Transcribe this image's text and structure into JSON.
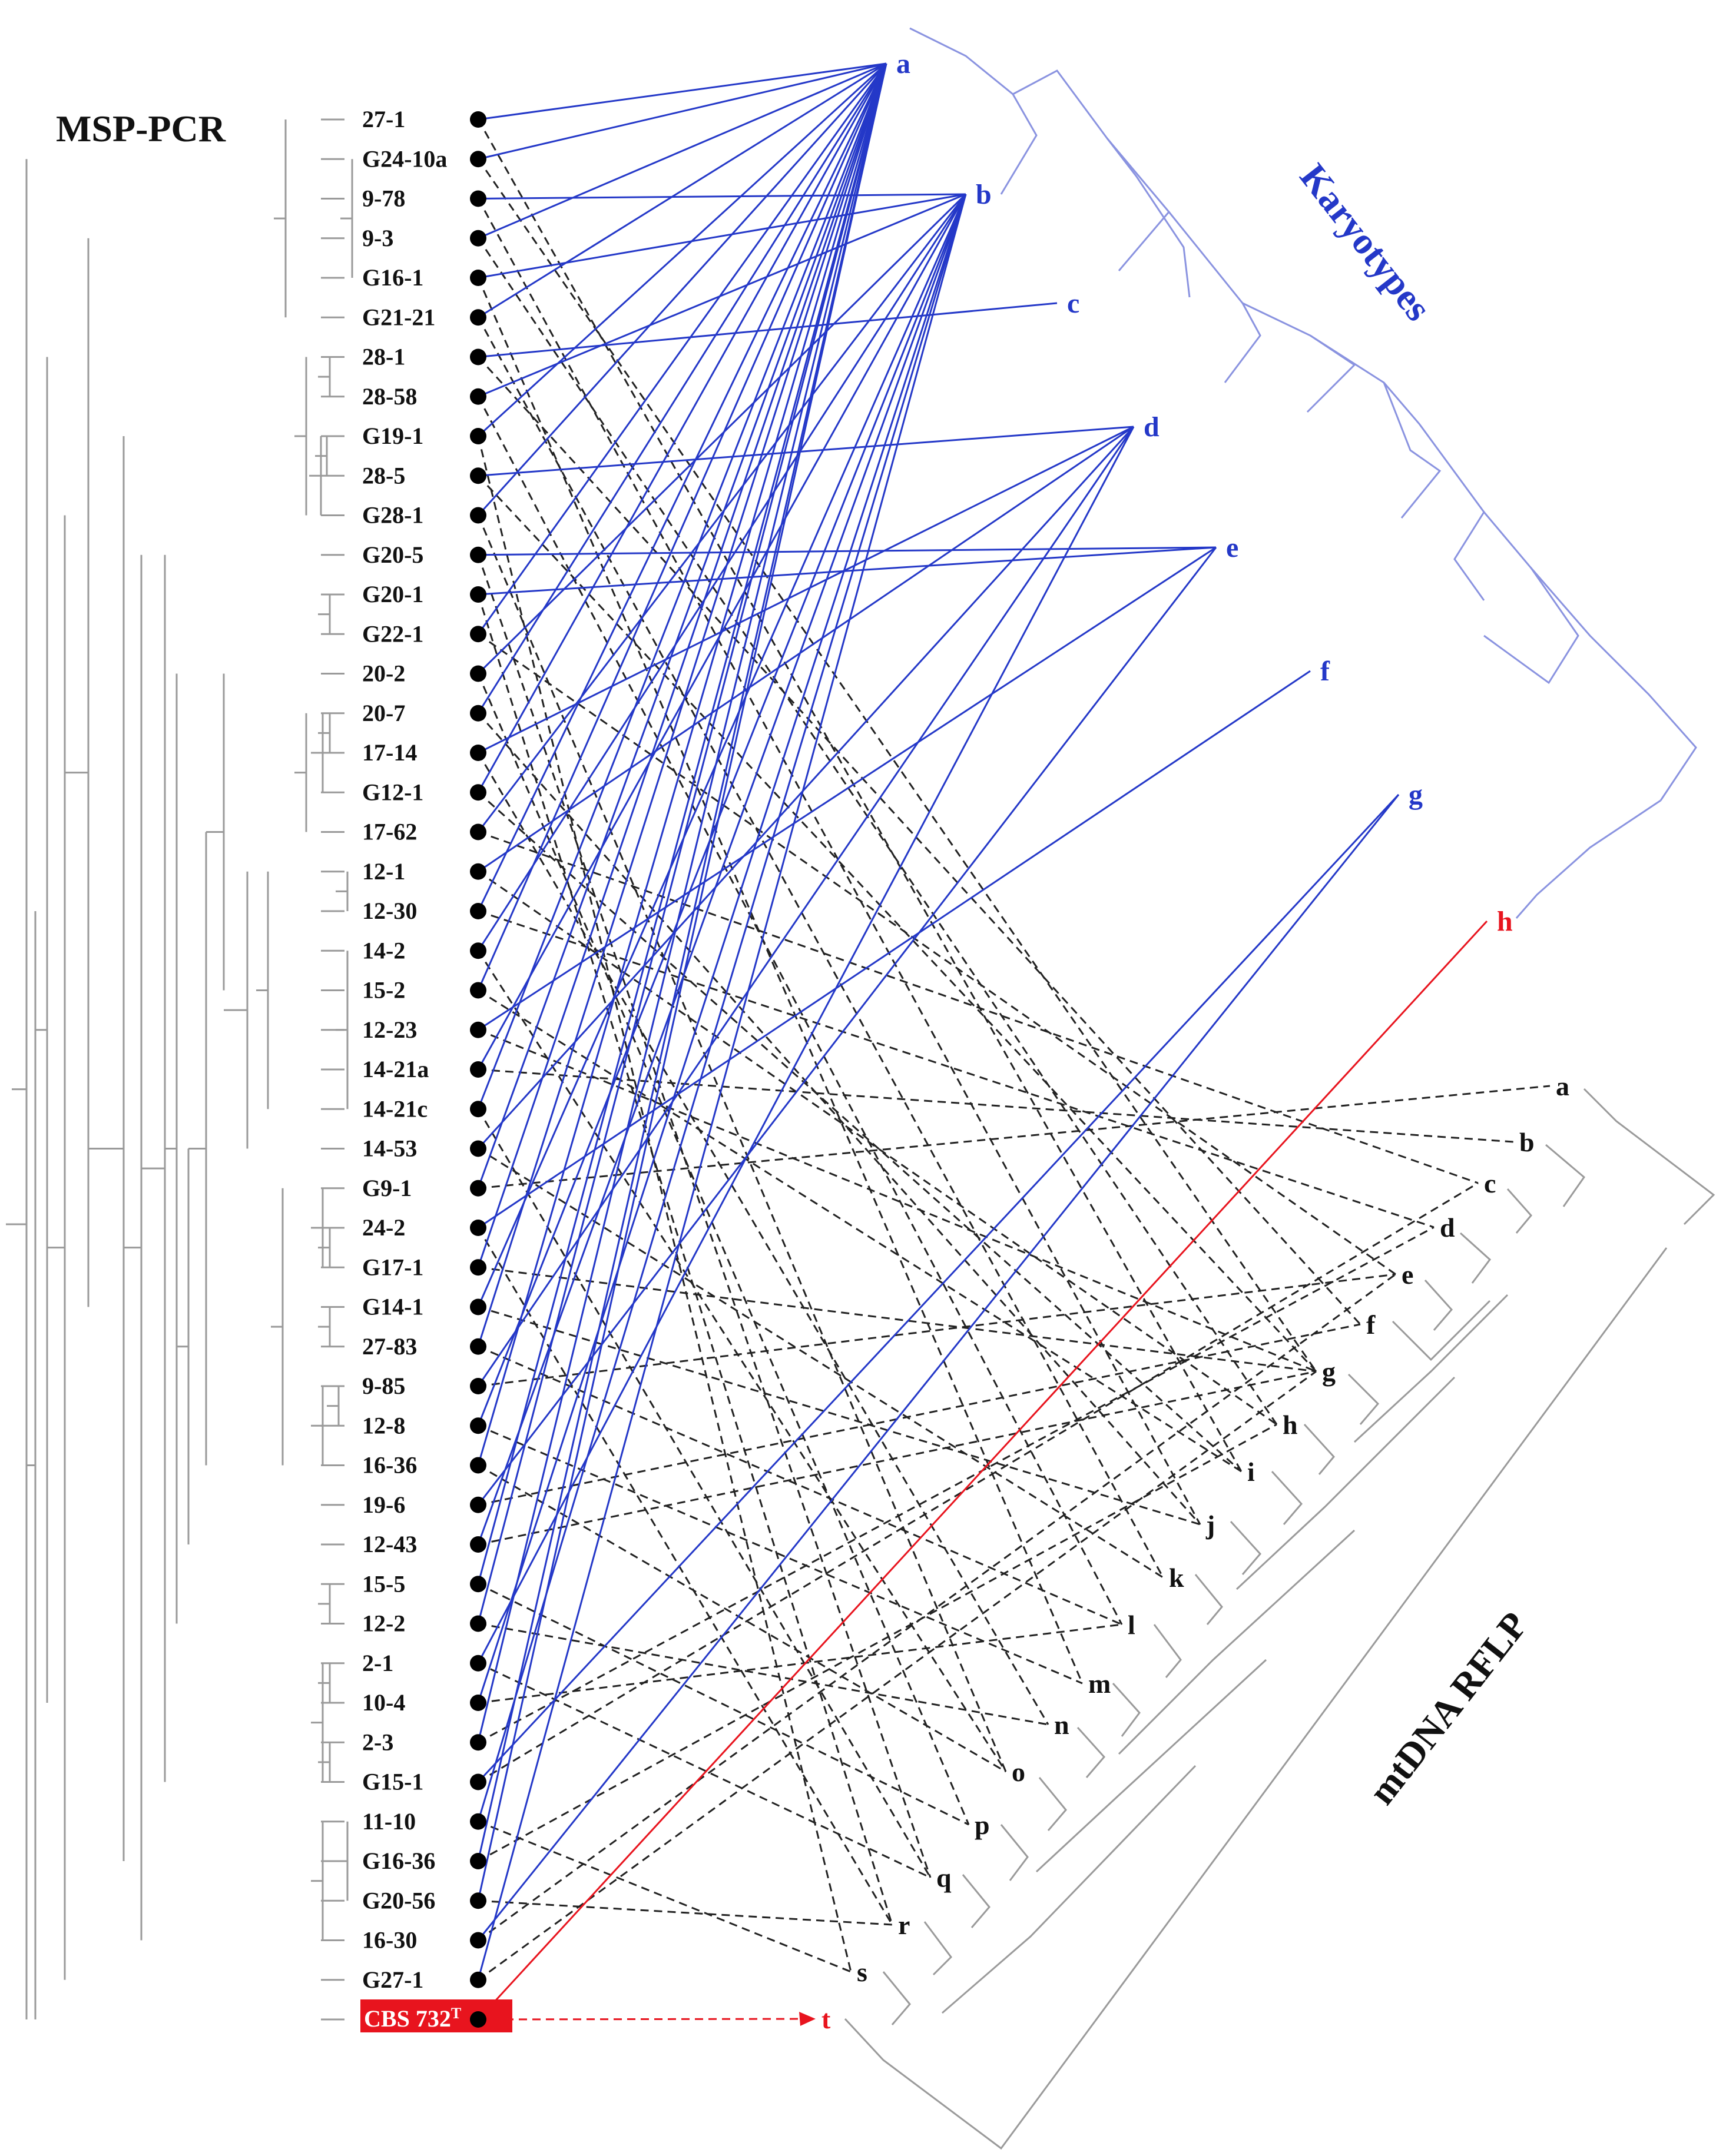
{
  "title": "MSP-PCR",
  "karyotypes_title": "Karyotypes",
  "mtdna_title": "mtDNA RFLP",
  "colors": {
    "karyotype": "#2438c8",
    "karyotype_tree": "#8a93e0",
    "mtdna_tree": "#9a9a9a",
    "msp_tree": "#9a9a9a",
    "highlight": "#e8141e",
    "dashed": "#222222",
    "text": "#111111"
  },
  "strains": [
    "27-1",
    "G24-10a",
    "9-78",
    "9-3",
    "G16-1",
    "G21-21",
    "28-1",
    "28-58",
    "G19-1",
    "28-5",
    "G28-1",
    "G20-5",
    "G20-1",
    "G22-1",
    "20-2",
    "20-7",
    "17-14",
    "G12-1",
    "17-62",
    "12-1",
    "12-30",
    "14-2",
    "15-2",
    "12-23",
    "14-21a",
    "14-21c",
    "14-53",
    "G9-1",
    "24-2",
    "G17-1",
    "G14-1",
    "27-83",
    "9-85",
    "12-8",
    "16-36",
    "19-6",
    "12-43",
    "15-5",
    "12-2",
    "2-1",
    "10-4",
    "2-3",
    "G15-1",
    "11-10",
    "G16-36",
    "G20-56",
    "16-30",
    "G27-1",
    "CBS 732T"
  ],
  "karyotypes": [
    "a",
    "b",
    "c",
    "d",
    "e",
    "f",
    "g",
    "h"
  ],
  "mtdna_profiles": [
    "a",
    "b",
    "c",
    "d",
    "e",
    "f",
    "g",
    "h",
    "i",
    "j",
    "k",
    "l",
    "m",
    "n",
    "o",
    "p",
    "q",
    "r",
    "s",
    "t"
  ],
  "type_strain": {
    "name": "CBS 732",
    "superscript": "T"
  },
  "karyotype_assignments": [
    "a",
    "a",
    "b",
    "a",
    "b",
    "a",
    "c",
    "b",
    "a",
    "d",
    "a",
    "e",
    "e",
    "a",
    "b",
    "a",
    "d",
    "a",
    "b",
    "d",
    "a",
    "b",
    "a",
    "e",
    "b",
    "a",
    "d",
    "a",
    "f",
    "a",
    "b",
    "a",
    "d",
    "b",
    "a",
    "e",
    "b",
    "a",
    "a",
    "d",
    "b",
    "a",
    "g",
    "b",
    "a",
    "a",
    "g",
    "b",
    "h"
  ],
  "mtdna_assignments": [
    "i",
    "g",
    "j",
    "h",
    "m",
    "k",
    "f",
    "l",
    "s",
    "g",
    "o",
    "q",
    "r",
    "e",
    "p",
    "j",
    "n",
    "i",
    "c",
    "h",
    "d",
    "o",
    "i",
    "g",
    "b",
    "q",
    "k",
    "a",
    "r",
    "g",
    "j",
    "l",
    "e",
    "m",
    "o",
    "f",
    "g",
    "p",
    "n",
    "q",
    "l",
    "d",
    "c",
    "s",
    "h",
    "r",
    "e",
    "g",
    "t"
  ]
}
